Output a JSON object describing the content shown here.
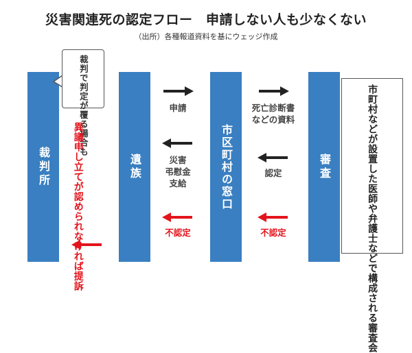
{
  "title": "災害関連死の認定フロー　申請しない人も少なくない",
  "subtitle": "（出所）各種報道資料を基にウェッジ作成",
  "columns": {
    "court": "裁判所",
    "family": "遺族",
    "office": "市区町村の窓口",
    "review": "審査"
  },
  "bubble_text": "裁判で判定が覆る場合も",
  "objection_text": "異議申し立てが認められなければ提訴",
  "labels": {
    "application": "申請",
    "documents_line1": "死亡診断書",
    "documents_line2": "などの資料",
    "payment_line1": "災害",
    "payment_line2": "弔慰金",
    "payment_line3": "支給",
    "approved": "認定",
    "rejected_family": "不認定",
    "rejected_review": "不認定"
  },
  "committee_text": "市町村などが設置した医師や弁護士などで構成される審査会",
  "colors": {
    "column_blue": "#3a7fc1",
    "arrow_dark": "#222222",
    "arrow_red": "#e3141c",
    "label_gray": "#444444"
  }
}
